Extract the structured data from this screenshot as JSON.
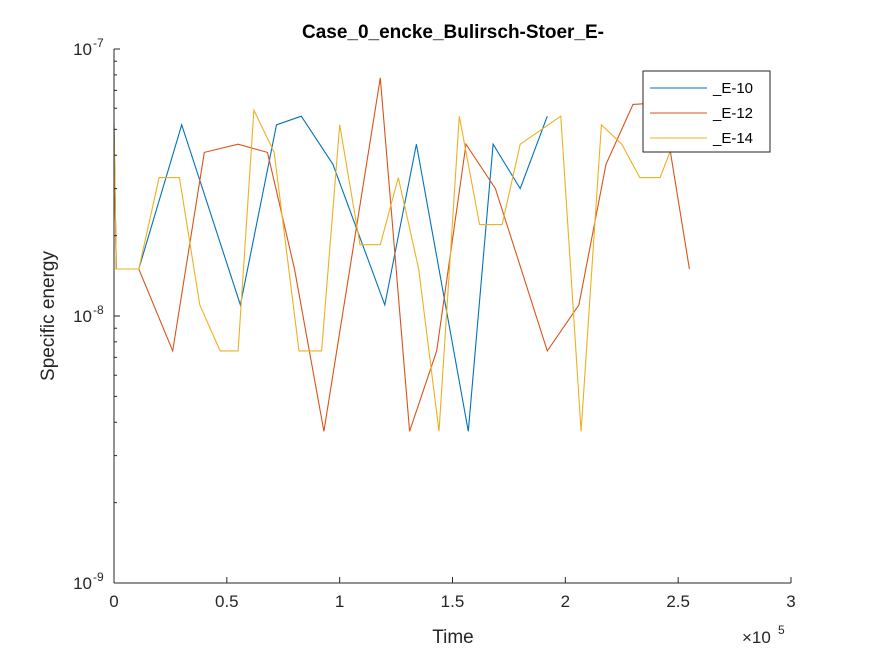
{
  "chart_data": {
    "type": "line",
    "title": "Case_0_encke_Bulirsch-Stoer_E-",
    "xlabel": "Time",
    "ylabel": "Specific energy",
    "x_exponent_label": "×10",
    "x_exponent_power": "5",
    "x_scale_factor": 100000,
    "xlim": [
      0,
      300000
    ],
    "ylim": [
      1e-09,
      1e-07
    ],
    "yscale": "log",
    "grid": false,
    "legend_position": "top-right",
    "x_ticks": [
      0,
      50000,
      100000,
      150000,
      200000,
      250000,
      300000
    ],
    "x_tick_labels": [
      "0",
      "0.5",
      "1",
      "1.5",
      "2",
      "2.5",
      "3"
    ],
    "y_ticks": [
      {
        "value": 1e-09,
        "base": "10",
        "exp": "-9"
      },
      {
        "value": 1e-08,
        "base": "10",
        "exp": "-8"
      },
      {
        "value": 1e-07,
        "base": "10",
        "exp": "-7"
      }
    ],
    "series": [
      {
        "name": "_E-10",
        "color": "#0072BD",
        "x": [
          0,
          1000,
          11000,
          30000,
          56000,
          72000,
          83000,
          97000,
          120000,
          134000,
          157000,
          168000,
          180000,
          192000
        ],
        "y": [
          5.2e-08,
          1.5e-08,
          1.5e-08,
          5.2e-08,
          1.1e-08,
          5.2e-08,
          5.6e-08,
          3.7e-08,
          1.1e-08,
          4.4e-08,
          3.7e-09,
          4.4e-08,
          3e-08,
          5.6e-08
        ]
      },
      {
        "name": "_E-12",
        "color": "#D95319",
        "x": [
          0,
          1000,
          11000,
          26000,
          40000,
          55000,
          68000,
          80000,
          93000,
          118000,
          131000,
          143000,
          156000,
          169000,
          192000,
          206000,
          218000,
          230000,
          243000,
          255000
        ],
        "y": [
          4.8e-08,
          1.5e-08,
          1.5e-08,
          7.4e-09,
          4.1e-08,
          4.4e-08,
          4.1e-08,
          1.5e-08,
          3.7e-09,
          7.8e-08,
          3.7e-09,
          7.4e-09,
          4.4e-08,
          3e-08,
          7.4e-09,
          1.1e-08,
          3.7e-08,
          6.2e-08,
          6.3e-08,
          1.5e-08
        ]
      },
      {
        "name": "_E-14",
        "color": "#EDB120",
        "x": [
          0,
          1000,
          11000,
          20000,
          29000,
          38000,
          47000,
          55000,
          62000,
          71000,
          82000,
          92000,
          100000,
          109000,
          118000,
          126000,
          135000,
          144000,
          153000,
          162000,
          172000,
          180000,
          198000,
          207000,
          216000,
          225000,
          233000,
          242000,
          251000
        ],
        "y": [
          5.2e-08,
          1.5e-08,
          1.5e-08,
          3.3e-08,
          3.3e-08,
          1.1e-08,
          7.4e-09,
          7.4e-09,
          5.9e-08,
          4.1e-08,
          7.4e-09,
          7.4e-09,
          5.2e-08,
          1.85e-08,
          1.85e-08,
          3.3e-08,
          1.5e-08,
          3.7e-09,
          5.6e-08,
          2.2e-08,
          2.2e-08,
          4.4e-08,
          5.6e-08,
          3.7e-09,
          5.2e-08,
          4.4e-08,
          3.3e-08,
          3.3e-08,
          5.2e-08
        ]
      }
    ]
  }
}
